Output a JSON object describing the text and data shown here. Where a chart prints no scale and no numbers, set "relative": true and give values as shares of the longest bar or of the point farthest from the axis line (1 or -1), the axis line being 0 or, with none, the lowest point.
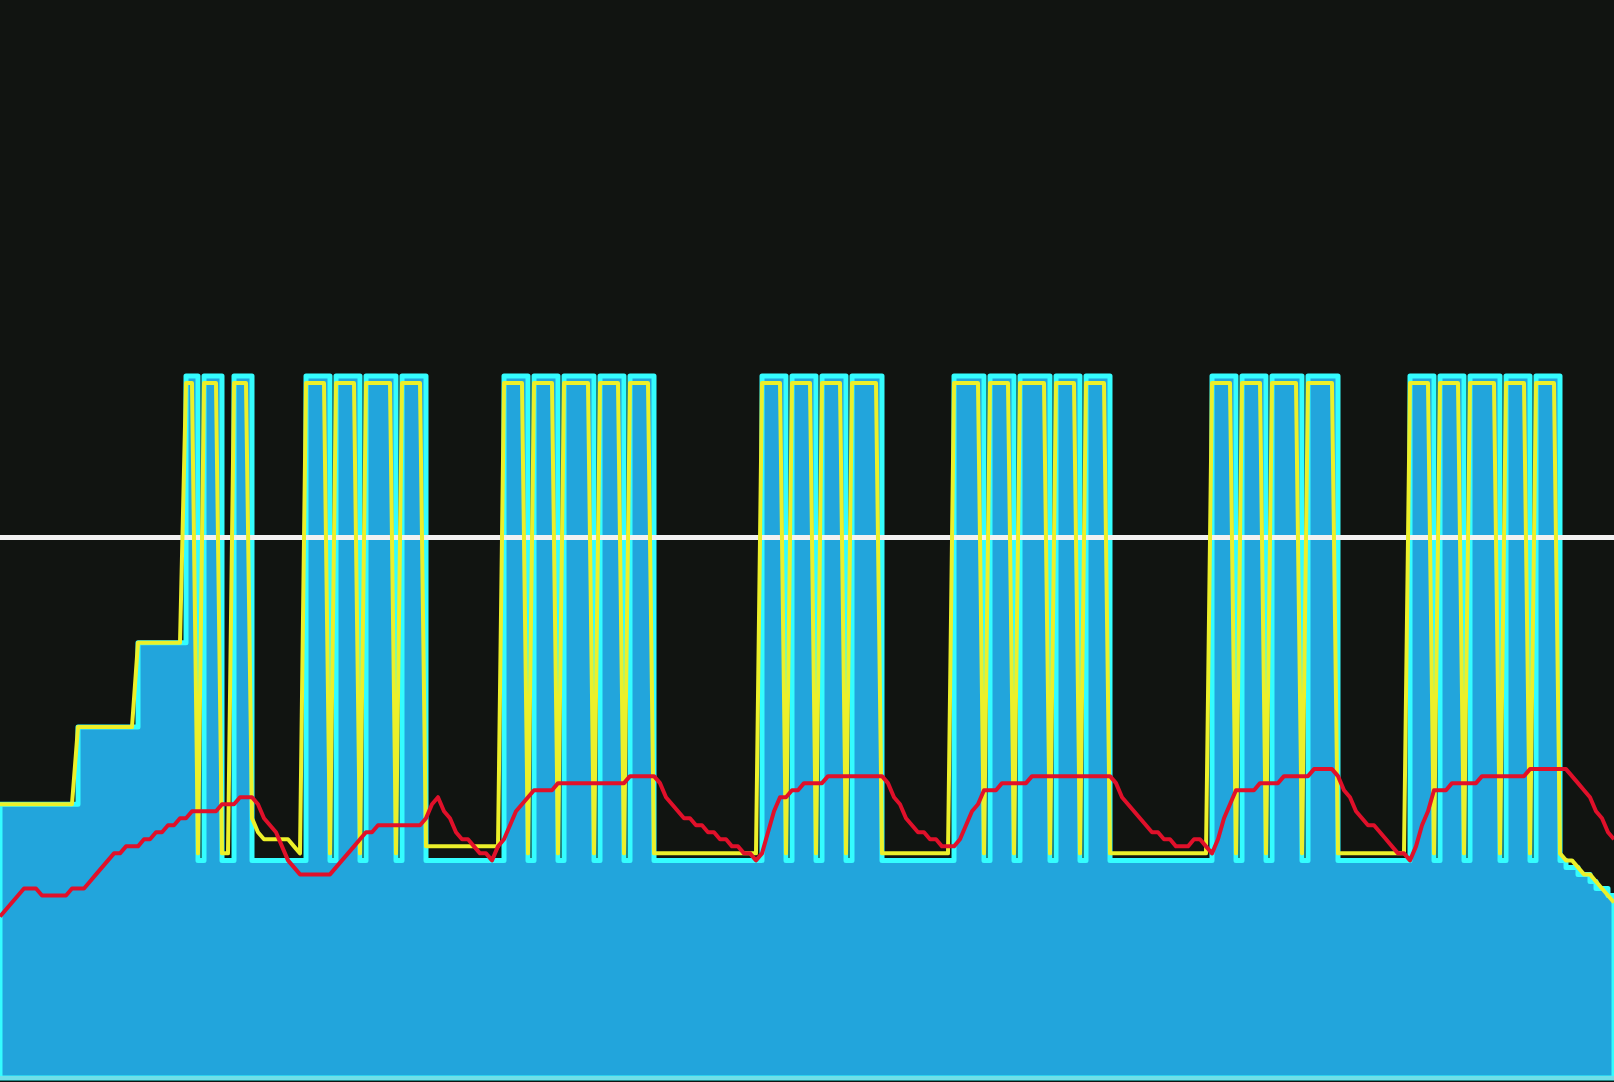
{
  "chart_data": {
    "type": "line",
    "relative": true,
    "tick_labels": false,
    "grid": false,
    "legend": false,
    "categories": [
      null,
      null,
      null,
      null,
      null,
      null,
      null,
      null,
      null,
      null,
      null,
      null,
      null,
      null,
      null,
      null,
      null,
      null,
      null,
      null,
      null,
      null,
      null,
      null,
      null,
      null,
      null,
      null,
      null,
      null,
      null,
      null,
      null,
      null,
      null,
      null,
      null,
      null,
      null,
      null,
      null,
      null,
      null,
      null,
      null,
      null,
      null,
      null,
      null,
      null,
      null,
      null,
      null,
      null,
      null,
      null,
      null,
      null,
      null,
      null,
      null,
      null,
      null,
      null,
      null,
      null,
      null,
      null,
      null,
      null,
      null,
      null,
      null,
      null,
      null,
      null,
      null,
      null,
      null,
      null,
      null,
      null,
      null,
      null,
      null,
      null,
      null,
      null,
      null,
      null,
      null,
      null,
      null,
      null,
      null,
      null,
      null,
      null,
      null,
      null,
      null,
      null,
      null,
      null,
      null,
      null,
      null,
      null,
      null,
      null,
      null,
      null,
      null,
      null,
      null,
      null,
      null,
      null,
      null,
      null,
      null,
      null,
      null,
      null,
      null,
      null,
      null,
      null,
      null,
      null,
      null,
      null,
      null,
      null,
      null,
      null,
      null,
      null,
      null,
      null,
      null,
      null,
      null,
      null,
      null,
      null,
      null,
      null,
      null,
      null,
      null,
      null,
      null,
      null,
      null,
      null,
      null,
      null,
      null,
      null,
      null,
      null,
      null,
      null,
      null,
      null,
      null,
      null,
      null,
      null,
      null,
      null,
      null,
      null,
      null,
      null,
      null,
      null,
      null,
      null,
      null,
      null,
      null,
      null,
      null,
      null,
      null,
      null,
      null,
      null,
      null,
      null,
      null,
      null,
      null,
      null,
      null,
      null,
      null,
      null,
      null,
      null,
      null,
      null,
      null,
      null,
      null,
      null,
      null,
      null,
      null,
      null,
      null,
      null,
      null,
      null,
      null,
      null,
      null,
      null,
      null,
      null,
      null,
      null,
      null,
      null,
      null,
      null,
      null,
      null,
      null,
      null,
      null,
      null,
      null,
      null,
      null,
      null,
      null,
      null,
      null,
      null,
      null,
      null,
      null,
      null,
      null,
      null,
      null,
      null,
      null,
      null,
      null,
      null,
      null,
      null,
      null,
      null,
      null,
      null,
      null,
      null,
      null,
      null,
      null,
      null,
      null,
      null,
      null,
      null
    ],
    "ref_lines": [
      {
        "axis": "y",
        "value": 0.77,
        "color": "#f2f2f2"
      }
    ],
    "series": [
      {
        "type": "area",
        "color": "#22a5dc",
        "values": [
          0.39,
          0.39,
          0.39,
          0.39,
          0.39,
          0.39,
          0.39,
          0.39,
          0.39,
          0.39,
          0.39,
          0.39,
          0.39,
          0.5,
          0.5,
          0.5,
          0.5,
          0.5,
          0.5,
          0.5,
          0.5,
          0.5,
          0.5,
          0.62,
          0.62,
          0.62,
          0.62,
          0.62,
          0.62,
          0.62,
          0.62,
          1,
          1,
          0.31,
          1,
          1,
          1,
          0.31,
          0.31,
          1,
          1,
          1,
          0.31,
          0.31,
          0.31,
          0.31,
          0.31,
          0.31,
          0.31,
          0.31,
          0.31,
          1,
          1,
          1,
          1,
          0.31,
          1,
          1,
          1,
          1,
          0.31,
          1,
          1,
          1,
          1,
          1,
          0.31,
          1,
          1,
          1,
          1,
          0.31,
          0.31,
          0.31,
          0.31,
          0.31,
          0.31,
          0.31,
          0.31,
          0.31,
          0.31,
          0.31,
          0.31,
          0.31,
          1,
          1,
          1,
          1,
          0.31,
          1,
          1,
          1,
          1,
          0.31,
          1,
          1,
          1,
          1,
          1,
          0.31,
          1,
          1,
          1,
          1,
          0.31,
          1,
          1,
          1,
          1,
          0.31,
          0.31,
          0.31,
          0.31,
          0.31,
          0.31,
          0.31,
          0.31,
          0.31,
          0.31,
          0.31,
          0.31,
          0.31,
          0.31,
          0.31,
          0.31,
          0.31,
          0.31,
          1,
          1,
          1,
          1,
          0.31,
          1,
          1,
          1,
          1,
          0.31,
          1,
          1,
          1,
          1,
          0.31,
          1,
          1,
          1,
          1,
          1,
          0.31,
          0.31,
          0.31,
          0.31,
          0.31,
          0.31,
          0.31,
          0.31,
          0.31,
          0.31,
          0.31,
          0.31,
          1,
          1,
          1,
          1,
          1,
          0.31,
          1,
          1,
          1,
          1,
          0.31,
          1,
          1,
          1,
          1,
          1,
          0.31,
          1,
          1,
          1,
          1,
          0.31,
          1,
          1,
          1,
          1,
          0.31,
          0.31,
          0.31,
          0.31,
          0.31,
          0.31,
          0.31,
          0.31,
          0.31,
          0.31,
          0.31,
          0.31,
          0.31,
          0.31,
          0.31,
          0.31,
          0.31,
          1,
          1,
          1,
          1,
          0.31,
          1,
          1,
          1,
          1,
          0.31,
          1,
          1,
          1,
          1,
          1,
          0.31,
          1,
          1,
          1,
          1,
          1,
          0.31,
          0.31,
          0.31,
          0.31,
          0.31,
          0.31,
          0.31,
          0.31,
          0.31,
          0.31,
          0.31,
          0.31,
          1,
          1,
          1,
          1,
          0.31,
          1,
          1,
          1,
          1,
          0.31,
          1,
          1,
          1,
          1,
          1,
          0.31,
          1,
          1,
          1,
          1,
          0.31,
          1,
          1,
          1,
          1,
          0.31,
          0.3,
          0.3,
          0.29,
          0.29,
          0.28,
          0.27,
          0.27,
          0.26,
          0.25
        ]
      },
      {
        "type": "line",
        "color": "#ecf02a",
        "values": [
          0.39,
          0.39,
          0.39,
          0.39,
          0.39,
          0.39,
          0.39,
          0.39,
          0.39,
          0.39,
          0.39,
          0.39,
          0.39,
          0.5,
          0.5,
          0.5,
          0.5,
          0.5,
          0.5,
          0.5,
          0.5,
          0.5,
          0.5,
          0.62,
          0.62,
          0.62,
          0.62,
          0.62,
          0.62,
          0.62,
          0.62,
          0.99,
          0.99,
          0.32,
          0.99,
          0.99,
          0.99,
          0.32,
          0.32,
          0.99,
          0.99,
          0.99,
          0.37,
          0.35,
          0.34,
          0.34,
          0.34,
          0.34,
          0.34,
          0.33,
          0.32,
          0.99,
          0.99,
          0.99,
          0.99,
          0.32,
          0.99,
          0.99,
          0.99,
          0.99,
          0.32,
          0.99,
          0.99,
          0.99,
          0.99,
          0.99,
          0.32,
          0.99,
          0.99,
          0.99,
          0.99,
          0.33,
          0.33,
          0.33,
          0.33,
          0.33,
          0.33,
          0.33,
          0.33,
          0.33,
          0.33,
          0.33,
          0.33,
          0.33,
          0.99,
          0.99,
          0.99,
          0.99,
          0.32,
          0.99,
          0.99,
          0.99,
          0.99,
          0.32,
          0.99,
          0.99,
          0.99,
          0.99,
          0.99,
          0.32,
          0.99,
          0.99,
          0.99,
          0.99,
          0.32,
          0.99,
          0.99,
          0.99,
          0.99,
          0.32,
          0.32,
          0.32,
          0.32,
          0.32,
          0.32,
          0.32,
          0.32,
          0.32,
          0.32,
          0.32,
          0.32,
          0.32,
          0.32,
          0.32,
          0.32,
          0.32,
          0.32,
          0.99,
          0.99,
          0.99,
          0.99,
          0.32,
          0.99,
          0.99,
          0.99,
          0.99,
          0.32,
          0.99,
          0.99,
          0.99,
          0.99,
          0.32,
          0.99,
          0.99,
          0.99,
          0.99,
          0.99,
          0.32,
          0.32,
          0.32,
          0.32,
          0.32,
          0.32,
          0.32,
          0.32,
          0.32,
          0.32,
          0.32,
          0.32,
          0.99,
          0.99,
          0.99,
          0.99,
          0.99,
          0.32,
          0.99,
          0.99,
          0.99,
          0.99,
          0.32,
          0.99,
          0.99,
          0.99,
          0.99,
          0.99,
          0.32,
          0.99,
          0.99,
          0.99,
          0.99,
          0.32,
          0.99,
          0.99,
          0.99,
          0.99,
          0.32,
          0.32,
          0.32,
          0.32,
          0.32,
          0.32,
          0.32,
          0.32,
          0.32,
          0.32,
          0.32,
          0.32,
          0.32,
          0.32,
          0.32,
          0.32,
          0.32,
          0.99,
          0.99,
          0.99,
          0.99,
          0.32,
          0.99,
          0.99,
          0.99,
          0.99,
          0.32,
          0.99,
          0.99,
          0.99,
          0.99,
          0.99,
          0.32,
          0.99,
          0.99,
          0.99,
          0.99,
          0.99,
          0.32,
          0.32,
          0.32,
          0.32,
          0.32,
          0.32,
          0.32,
          0.32,
          0.32,
          0.32,
          0.32,
          0.32,
          0.99,
          0.99,
          0.99,
          0.99,
          0.32,
          0.99,
          0.99,
          0.99,
          0.99,
          0.32,
          0.99,
          0.99,
          0.99,
          0.99,
          0.99,
          0.32,
          0.99,
          0.99,
          0.99,
          0.99,
          0.32,
          0.99,
          0.99,
          0.99,
          0.99,
          0.32,
          0.31,
          0.31,
          0.3,
          0.29,
          0.29,
          0.28,
          0.27,
          0.26,
          0.25
        ]
      },
      {
        "type": "line",
        "color": "#e0102a",
        "values": [
          0.23,
          0.24,
          0.25,
          0.26,
          0.27,
          0.27,
          0.27,
          0.26,
          0.26,
          0.26,
          0.26,
          0.26,
          0.27,
          0.27,
          0.27,
          0.28,
          0.29,
          0.3,
          0.31,
          0.32,
          0.32,
          0.33,
          0.33,
          0.33,
          0.34,
          0.34,
          0.35,
          0.35,
          0.36,
          0.36,
          0.37,
          0.37,
          0.38,
          0.38,
          0.38,
          0.38,
          0.38,
          0.39,
          0.39,
          0.39,
          0.4,
          0.4,
          0.4,
          0.39,
          0.37,
          0.36,
          0.35,
          0.33,
          0.31,
          0.3,
          0.29,
          0.29,
          0.29,
          0.29,
          0.29,
          0.29,
          0.3,
          0.31,
          0.32,
          0.33,
          0.34,
          0.35,
          0.35,
          0.36,
          0.36,
          0.36,
          0.36,
          0.36,
          0.36,
          0.36,
          0.36,
          0.37,
          0.39,
          0.4,
          0.38,
          0.37,
          0.35,
          0.34,
          0.34,
          0.33,
          0.32,
          0.32,
          0.31,
          0.33,
          0.34,
          0.36,
          0.38,
          0.39,
          0.4,
          0.41,
          0.41,
          0.41,
          0.41,
          0.42,
          0.42,
          0.42,
          0.42,
          0.42,
          0.42,
          0.42,
          0.42,
          0.42,
          0.42,
          0.42,
          0.42,
          0.43,
          0.43,
          0.43,
          0.43,
          0.43,
          0.42,
          0.4,
          0.39,
          0.38,
          0.37,
          0.37,
          0.36,
          0.36,
          0.35,
          0.35,
          0.34,
          0.34,
          0.33,
          0.33,
          0.32,
          0.32,
          0.31,
          0.32,
          0.35,
          0.38,
          0.4,
          0.4,
          0.41,
          0.41,
          0.42,
          0.42,
          0.42,
          0.42,
          0.43,
          0.43,
          0.43,
          0.43,
          0.43,
          0.43,
          0.43,
          0.43,
          0.43,
          0.43,
          0.42,
          0.4,
          0.39,
          0.37,
          0.36,
          0.35,
          0.35,
          0.34,
          0.34,
          0.33,
          0.33,
          0.33,
          0.34,
          0.36,
          0.38,
          0.39,
          0.41,
          0.41,
          0.41,
          0.42,
          0.42,
          0.42,
          0.42,
          0.42,
          0.43,
          0.43,
          0.43,
          0.43,
          0.43,
          0.43,
          0.43,
          0.43,
          0.43,
          0.43,
          0.43,
          0.43,
          0.43,
          0.43,
          0.42,
          0.4,
          0.39,
          0.38,
          0.37,
          0.36,
          0.35,
          0.35,
          0.34,
          0.34,
          0.33,
          0.33,
          0.33,
          0.34,
          0.34,
          0.33,
          0.32,
          0.34,
          0.37,
          0.39,
          0.41,
          0.41,
          0.41,
          0.41,
          0.42,
          0.42,
          0.42,
          0.42,
          0.43,
          0.43,
          0.43,
          0.43,
          0.43,
          0.44,
          0.44,
          0.44,
          0.44,
          0.43,
          0.41,
          0.4,
          0.38,
          0.37,
          0.36,
          0.36,
          0.35,
          0.34,
          0.33,
          0.32,
          0.32,
          0.31,
          0.33,
          0.36,
          0.38,
          0.41,
          0.41,
          0.41,
          0.42,
          0.42,
          0.42,
          0.42,
          0.42,
          0.43,
          0.43,
          0.43,
          0.43,
          0.43,
          0.43,
          0.43,
          0.43,
          0.44,
          0.44,
          0.44,
          0.44,
          0.44,
          0.44,
          0.44,
          0.43,
          0.42,
          0.41,
          0.4,
          0.38,
          0.37,
          0.35,
          0.34
        ]
      }
    ]
  }
}
